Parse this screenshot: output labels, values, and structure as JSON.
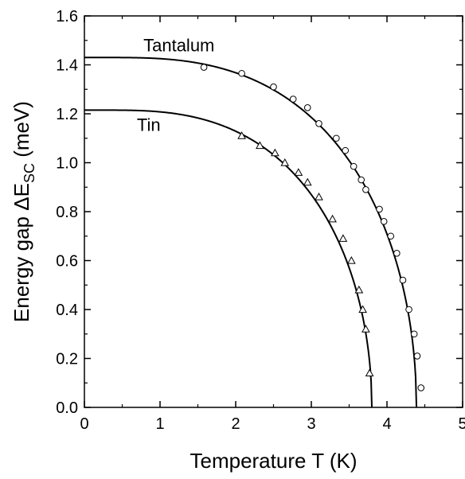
{
  "chart_data": {
    "type": "scatter",
    "xlabel": "Temperature T (K)",
    "ylabel_prefix": "Energy gap ΔE",
    "ylabel_subscript": "SC",
    "ylabel_suffix": " (meV)",
    "xlim": [
      0,
      5
    ],
    "ylim": [
      0,
      1.6
    ],
    "x_ticks": [
      "0",
      "1",
      "2",
      "3",
      "4",
      "5"
    ],
    "y_ticks": [
      "0.0",
      "0.2",
      "0.4",
      "0.6",
      "0.8",
      "1.0",
      "1.2",
      "1.4",
      "1.6"
    ],
    "grid": false,
    "series": [
      {
        "name": "Tantalum",
        "marker": "circle",
        "fit": {
          "delta0": 1.43,
          "tc": 4.39
        },
        "points": [
          [
            1.58,
            1.39
          ],
          [
            2.08,
            1.365
          ],
          [
            2.5,
            1.31
          ],
          [
            2.76,
            1.26
          ],
          [
            2.95,
            1.225
          ],
          [
            3.1,
            1.16
          ],
          [
            3.33,
            1.1
          ],
          [
            3.45,
            1.05
          ],
          [
            3.56,
            0.985
          ],
          [
            3.66,
            0.93
          ],
          [
            3.72,
            0.89
          ],
          [
            3.9,
            0.81
          ],
          [
            3.96,
            0.76
          ],
          [
            4.05,
            0.7
          ],
          [
            4.13,
            0.63
          ],
          [
            4.21,
            0.52
          ],
          [
            4.29,
            0.4
          ],
          [
            4.36,
            0.3
          ],
          [
            4.4,
            0.21
          ],
          [
            4.45,
            0.08
          ]
        ]
      },
      {
        "name": "Tin",
        "marker": "triangle",
        "fit": {
          "delta0": 1.215,
          "tc": 3.8
        },
        "points": [
          [
            2.08,
            1.11
          ],
          [
            2.32,
            1.07
          ],
          [
            2.52,
            1.04
          ],
          [
            2.65,
            1.0
          ],
          [
            2.83,
            0.96
          ],
          [
            2.95,
            0.92
          ],
          [
            3.1,
            0.86
          ],
          [
            3.28,
            0.77
          ],
          [
            3.42,
            0.69
          ],
          [
            3.53,
            0.6
          ],
          [
            3.63,
            0.48
          ],
          [
            3.68,
            0.4
          ],
          [
            3.72,
            0.32
          ],
          [
            3.77,
            0.14
          ]
        ]
      }
    ]
  }
}
